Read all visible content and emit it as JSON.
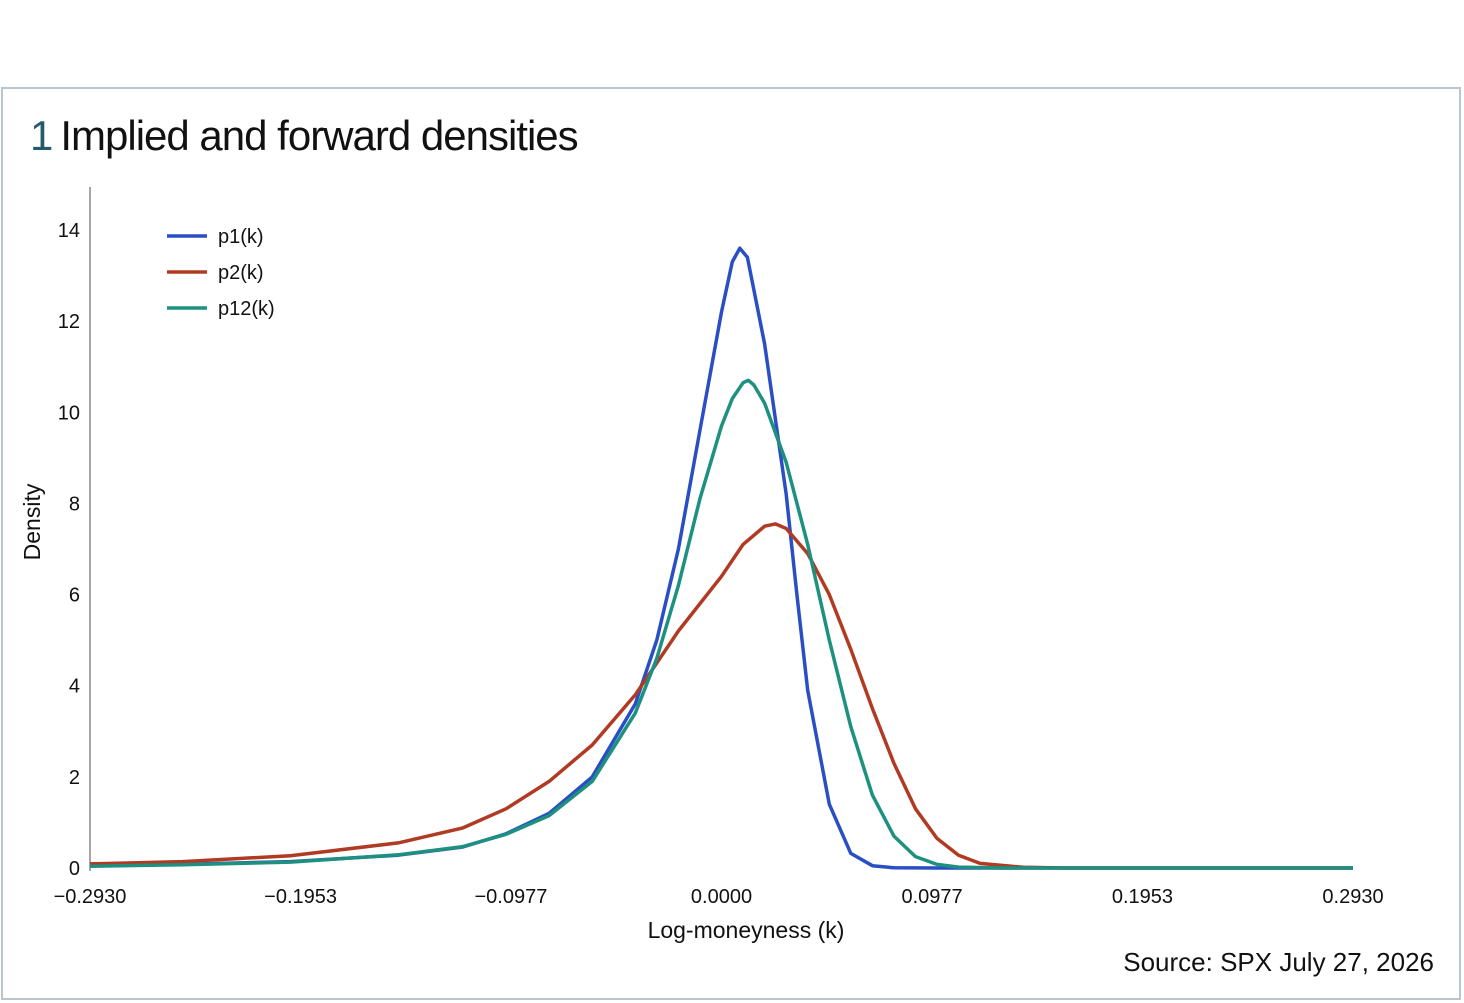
{
  "figure": {
    "number": "1",
    "title": "Implied and forward densities",
    "source": "Source: SPX July 27, 2026"
  },
  "chart_data": {
    "type": "line",
    "xlabel": "Log-moneyness (k)",
    "ylabel": "Density",
    "xlim": [
      -0.293,
      0.293
    ],
    "ylim": [
      0,
      15
    ],
    "xticks": [
      "−0.2930",
      "−0.1953",
      "−0.0977",
      "0.0000",
      "0.0977",
      "0.1953",
      "0.2930"
    ],
    "xtick_values": [
      -0.293,
      -0.1953,
      -0.0977,
      0.0,
      0.0977,
      0.1953,
      0.293
    ],
    "yticks": [
      "0",
      "2",
      "4",
      "6",
      "8",
      "10",
      "12",
      "14"
    ],
    "ytick_values": [
      0,
      2,
      4,
      6,
      8,
      10,
      12,
      14
    ],
    "legend_position": "top-left",
    "grid": false,
    "series": [
      {
        "name": "p1(k)",
        "color": "#2a4fc4",
        "points": [
          [
            -0.293,
            0.05
          ],
          [
            -0.25,
            0.08
          ],
          [
            -0.2,
            0.14
          ],
          [
            -0.15,
            0.28
          ],
          [
            -0.12,
            0.46
          ],
          [
            -0.1,
            0.75
          ],
          [
            -0.08,
            1.2
          ],
          [
            -0.06,
            2.0
          ],
          [
            -0.04,
            3.6
          ],
          [
            -0.03,
            5.0
          ],
          [
            -0.02,
            7.0
          ],
          [
            -0.01,
            9.6
          ],
          [
            0.0,
            12.2
          ],
          [
            0.005,
            13.3
          ],
          [
            0.0085,
            13.6
          ],
          [
            0.012,
            13.4
          ],
          [
            0.02,
            11.5
          ],
          [
            0.03,
            8.2
          ],
          [
            0.035,
            6.0
          ],
          [
            0.04,
            3.9
          ],
          [
            0.05,
            1.4
          ],
          [
            0.06,
            0.32
          ],
          [
            0.07,
            0.05
          ],
          [
            0.08,
            0.005
          ],
          [
            0.1,
            0.0
          ],
          [
            0.15,
            0.0
          ],
          [
            0.2,
            0.0
          ],
          [
            0.25,
            0.0
          ],
          [
            0.293,
            0.0
          ]
        ]
      },
      {
        "name": "p2(k)",
        "color": "#b03a22",
        "points": [
          [
            -0.293,
            0.09
          ],
          [
            -0.25,
            0.14
          ],
          [
            -0.2,
            0.27
          ],
          [
            -0.15,
            0.55
          ],
          [
            -0.12,
            0.88
          ],
          [
            -0.1,
            1.3
          ],
          [
            -0.08,
            1.9
          ],
          [
            -0.06,
            2.7
          ],
          [
            -0.04,
            3.8
          ],
          [
            -0.02,
            5.2
          ],
          [
            0.0,
            6.4
          ],
          [
            0.01,
            7.1
          ],
          [
            0.02,
            7.5
          ],
          [
            0.025,
            7.55
          ],
          [
            0.03,
            7.45
          ],
          [
            0.04,
            6.9
          ],
          [
            0.05,
            6.0
          ],
          [
            0.06,
            4.8
          ],
          [
            0.07,
            3.5
          ],
          [
            0.08,
            2.3
          ],
          [
            0.09,
            1.3
          ],
          [
            0.1,
            0.65
          ],
          [
            0.11,
            0.28
          ],
          [
            0.12,
            0.1
          ],
          [
            0.14,
            0.015
          ],
          [
            0.16,
            0.0
          ],
          [
            0.2,
            0.0
          ],
          [
            0.25,
            0.0
          ],
          [
            0.293,
            0.0
          ]
        ]
      },
      {
        "name": "p12(k)",
        "color": "#1d9080",
        "points": [
          [
            -0.293,
            0.04
          ],
          [
            -0.25,
            0.07
          ],
          [
            -0.2,
            0.13
          ],
          [
            -0.15,
            0.29
          ],
          [
            -0.12,
            0.47
          ],
          [
            -0.1,
            0.74
          ],
          [
            -0.08,
            1.15
          ],
          [
            -0.06,
            1.9
          ],
          [
            -0.04,
            3.4
          ],
          [
            -0.03,
            4.6
          ],
          [
            -0.02,
            6.2
          ],
          [
            -0.01,
            8.1
          ],
          [
            0.0,
            9.7
          ],
          [
            0.005,
            10.3
          ],
          [
            0.01,
            10.65
          ],
          [
            0.0125,
            10.7
          ],
          [
            0.015,
            10.6
          ],
          [
            0.02,
            10.2
          ],
          [
            0.03,
            8.9
          ],
          [
            0.04,
            7.1
          ],
          [
            0.05,
            5.0
          ],
          [
            0.06,
            3.1
          ],
          [
            0.07,
            1.6
          ],
          [
            0.08,
            0.7
          ],
          [
            0.09,
            0.25
          ],
          [
            0.1,
            0.08
          ],
          [
            0.11,
            0.02
          ],
          [
            0.13,
            0.0
          ],
          [
            0.2,
            0.0
          ],
          [
            0.25,
            0.0
          ],
          [
            0.293,
            0.0
          ]
        ]
      }
    ]
  }
}
